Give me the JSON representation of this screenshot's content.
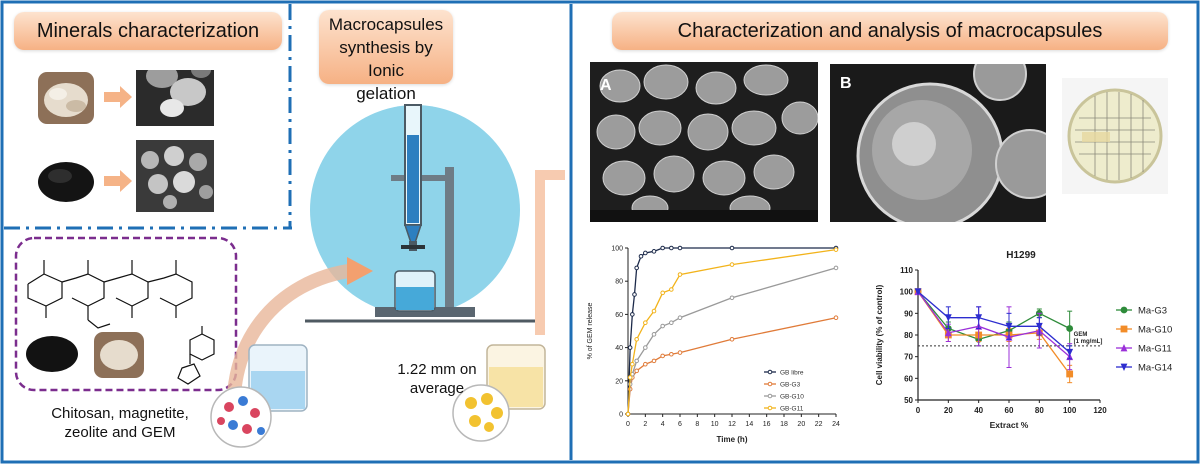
{
  "sections": {
    "minerals": {
      "title": "Minerals characterization"
    },
    "synthesis": {
      "title_line1": "Macrocapsules",
      "title_line2": "synthesis by Ionic",
      "title_line3": "gelation"
    },
    "analysis": {
      "title": "Characterization and analysis of macrocapsules"
    }
  },
  "materials": {
    "caption_line1": "Chitosan, magnetite,",
    "caption_line2": "zeolite and GEM"
  },
  "size_note": {
    "line1": "1.22 mm on",
    "line2": "average"
  },
  "sem_labels": {
    "a": "A",
    "b": "B"
  },
  "colors": {
    "frame_blue": "#1f6fb5",
    "dash_purple": "#7b2d8e",
    "pill_orange": "#f6b184",
    "beaker_circle": "#8fd4ea"
  },
  "chart_data": [
    {
      "type": "line",
      "title": "",
      "xlabel": "Time (h)",
      "ylabel": "% of GEM release",
      "xlim": [
        0,
        24
      ],
      "ylim": [
        0,
        100
      ],
      "xticks": [
        0,
        2,
        4,
        6,
        8,
        10,
        12,
        14,
        16,
        18,
        20,
        22,
        24
      ],
      "yticks": [
        0,
        20,
        40,
        60,
        80,
        100
      ],
      "legend_position": "bottom-right",
      "series": [
        {
          "name": "GB libre",
          "color": "#1c2a4a",
          "x": [
            0,
            0.25,
            0.5,
            0.75,
            1,
            1.5,
            2,
            3,
            4,
            5,
            6,
            12,
            24
          ],
          "y": [
            0,
            40,
            60,
            72,
            88,
            95,
            97,
            98,
            100,
            100,
            100,
            100,
            100
          ]
        },
        {
          "name": "GB-G3",
          "color": "#e07b39",
          "x": [
            0,
            0.25,
            0.5,
            1,
            2,
            3,
            4,
            5,
            6,
            12,
            24
          ],
          "y": [
            0,
            15,
            22,
            26,
            30,
            32,
            35,
            36,
            37,
            45,
            58
          ]
        },
        {
          "name": "GB-G10",
          "color": "#9a9a9a",
          "x": [
            0,
            0.25,
            0.5,
            1,
            2,
            3,
            4,
            5,
            6,
            12,
            24
          ],
          "y": [
            0,
            18,
            24,
            32,
            40,
            48,
            53,
            55,
            58,
            70,
            88
          ]
        },
        {
          "name": "GB-G11",
          "color": "#f2b31b",
          "x": [
            0,
            0.25,
            0.5,
            1,
            2,
            3,
            4,
            5,
            6,
            12,
            24
          ],
          "y": [
            0,
            22,
            30,
            45,
            55,
            62,
            73,
            75,
            84,
            90,
            99
          ]
        }
      ]
    },
    {
      "type": "line",
      "title": "H1299",
      "xlabel": "Extract %",
      "ylabel": "Cell viability (% of control)",
      "xlim": [
        0,
        120
      ],
      "ylim": [
        50,
        110
      ],
      "xticks": [
        0,
        20,
        40,
        60,
        80,
        100,
        120
      ],
      "yticks": [
        50,
        60,
        70,
        80,
        90,
        100,
        110
      ],
      "legend_position": "right",
      "reference_line": {
        "y": 75,
        "label_line1": "GEM",
        "label_line2": "[1 mg/mL]"
      },
      "x": [
        0,
        20,
        40,
        60,
        80,
        100
      ],
      "series": [
        {
          "name": "Ma-G3",
          "color": "#2e8b3a",
          "marker": "circle",
          "values": [
            100,
            83,
            78,
            82,
            90,
            83
          ],
          "error": [
            0,
            3,
            3,
            4,
            2,
            8
          ]
        },
        {
          "name": "Ma-G10",
          "color": "#f28c28",
          "marker": "square",
          "values": [
            100,
            80,
            80,
            80,
            81,
            62
          ],
          "error": [
            0,
            3,
            3,
            3,
            3,
            4
          ]
        },
        {
          "name": "Ma-G11",
          "color": "#9b30d9",
          "marker": "triangle-up",
          "values": [
            100,
            81,
            84,
            79,
            82,
            70
          ],
          "error": [
            0,
            4,
            9,
            14,
            8,
            6
          ]
        },
        {
          "name": "Ma-G14",
          "color": "#2d2dcf",
          "marker": "triangle-down",
          "values": [
            100,
            88,
            88,
            84,
            84,
            72
          ],
          "error": [
            0,
            5,
            5,
            6,
            4,
            3
          ]
        }
      ]
    }
  ]
}
